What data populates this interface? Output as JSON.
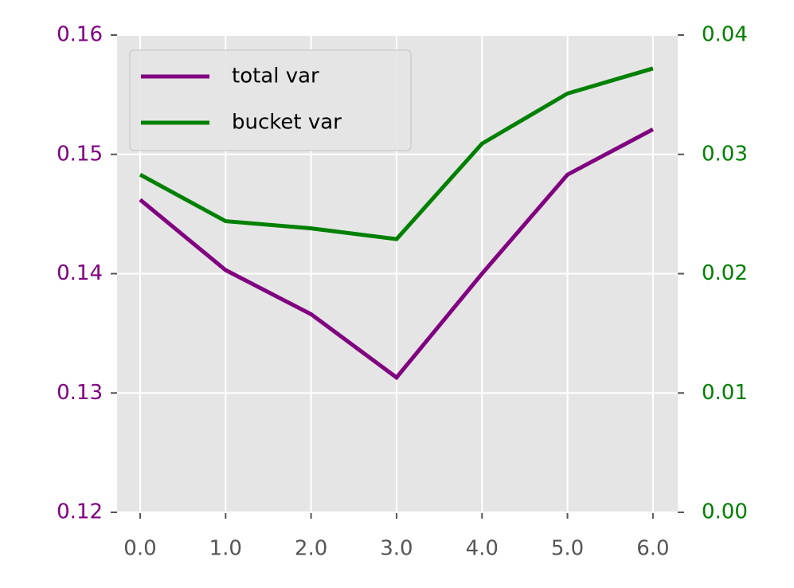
{
  "chart_data": {
    "type": "line",
    "x": [
      0,
      1,
      2,
      3,
      4,
      5,
      6
    ],
    "series": [
      {
        "name": "total var",
        "color": "#800080",
        "values": [
          0.1462,
          0.1403,
          0.1366,
          0.1313,
          0.14,
          0.1483,
          0.1521
        ]
      },
      {
        "name": "bucket var",
        "color": "#008000",
        "axis": "y2",
        "values": [
          0.0283,
          0.0244,
          0.0238,
          0.0229,
          0.0309,
          0.0351,
          0.0372
        ]
      }
    ],
    "xlim": [
      -0.27,
      6.29
    ],
    "xticks": [
      {
        "value": 0,
        "label": "0.0"
      },
      {
        "value": 1,
        "label": "1.0"
      },
      {
        "value": 2,
        "label": "2.0"
      },
      {
        "value": 3,
        "label": "3.0"
      },
      {
        "value": 4,
        "label": "4.0"
      },
      {
        "value": 5,
        "label": "5.0"
      },
      {
        "value": 6,
        "label": "6.0"
      }
    ],
    "ylim": [
      0.12,
      0.16
    ],
    "yticks": [
      0.12,
      0.13,
      0.14,
      0.15,
      0.16
    ],
    "y2lim": [
      0,
      0.04
    ],
    "y2ticks": [
      {
        "value": 0,
        "label": "0.00"
      },
      0.01,
      0.02,
      0.03,
      0.04
    ],
    "grid": true,
    "legend": "upper left"
  }
}
